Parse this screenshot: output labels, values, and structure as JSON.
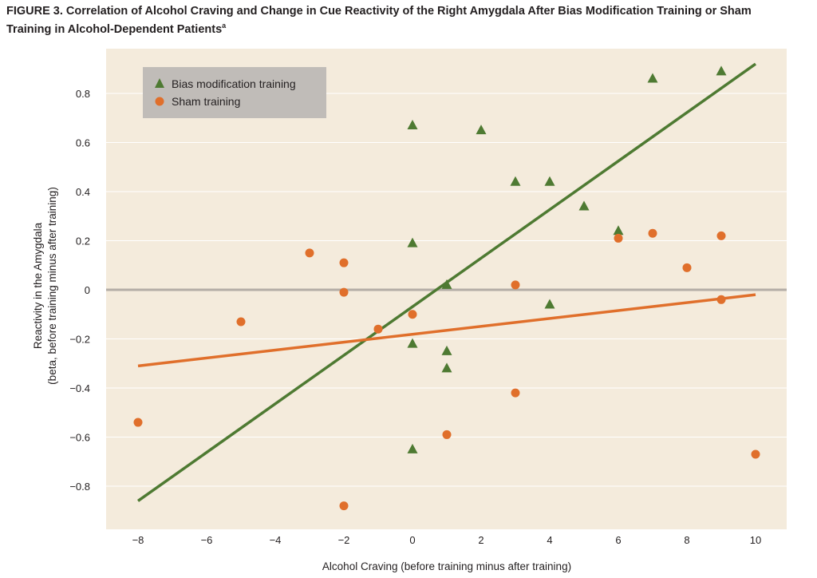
{
  "figure": {
    "title_line1": "FIGURE 3.  Correlation of Alcohol Craving and Change in Cue Reactivity of the Right Amygdala After Bias Modification Training or Sham",
    "title_line2": "Training in Alcohol-Dependent Patients",
    "title_sup": "a"
  },
  "colors": {
    "background": "#f4ebdc",
    "grid": "#ffffff",
    "zero_line": "#b3ada6",
    "bias": "#4e7a32",
    "sham": "#e06f2b",
    "legend_bg": "#c0bcb8"
  },
  "chart_data": {
    "type": "scatter",
    "xlabel": "Alcohol Craving (before training minus after training)",
    "ylabel_line1": "Reactivity in the Amygdala",
    "ylabel_line2": "(beta, before training minus after training)",
    "xlim": [
      -9,
      11
    ],
    "ylim": [
      -1.0,
      0.95
    ],
    "xticks": [
      -8,
      -6,
      -4,
      -2,
      0,
      2,
      4,
      6,
      8,
      10
    ],
    "yticks": [
      -0.8,
      -0.6,
      -0.4,
      -0.2,
      0,
      0.2,
      0.4,
      0.6,
      0.8
    ],
    "xtick_labels": [
      "−8",
      "−6",
      "−4",
      "−2",
      "0",
      "2",
      "4",
      "6",
      "8",
      "10"
    ],
    "ytick_labels": [
      "−0.8",
      "−0.6",
      "−0.4",
      "−0.2",
      "0",
      "0.2",
      "0.4",
      "0.6",
      "0.8"
    ],
    "grid": "horizontal",
    "legend_position": "top-left",
    "series": [
      {
        "name": "Bias modification training",
        "marker": "triangle",
        "color": "#4e7a32",
        "points": [
          [
            0,
            0.67
          ],
          [
            0,
            0.19
          ],
          [
            0,
            -0.22
          ],
          [
            0,
            -0.65
          ],
          [
            1,
            0.02
          ],
          [
            1,
            -0.25
          ],
          [
            1,
            -0.32
          ],
          [
            2,
            0.65
          ],
          [
            3,
            0.44
          ],
          [
            4,
            0.44
          ],
          [
            4,
            -0.06
          ],
          [
            5,
            0.34
          ],
          [
            6,
            0.24
          ],
          [
            7,
            0.86
          ],
          [
            9,
            0.89
          ]
        ],
        "fit_line": [
          [
            -8,
            -0.86
          ],
          [
            10,
            0.92
          ]
        ]
      },
      {
        "name": "Sham training",
        "marker": "circle",
        "color": "#e06f2b",
        "points": [
          [
            -8,
            -0.54
          ],
          [
            -5,
            -0.13
          ],
          [
            -3,
            0.15
          ],
          [
            -2,
            0.11
          ],
          [
            -2,
            -0.01
          ],
          [
            -2,
            -0.88
          ],
          [
            -1,
            -0.16
          ],
          [
            0,
            -0.1
          ],
          [
            1,
            -0.59
          ],
          [
            3,
            0.02
          ],
          [
            3,
            -0.42
          ],
          [
            6,
            0.21
          ],
          [
            7,
            0.23
          ],
          [
            8,
            0.09
          ],
          [
            9,
            0.22
          ],
          [
            9,
            -0.04
          ],
          [
            10,
            -0.67
          ]
        ],
        "fit_line": [
          [
            -8,
            -0.31
          ],
          [
            10,
            -0.02
          ]
        ]
      }
    ]
  }
}
